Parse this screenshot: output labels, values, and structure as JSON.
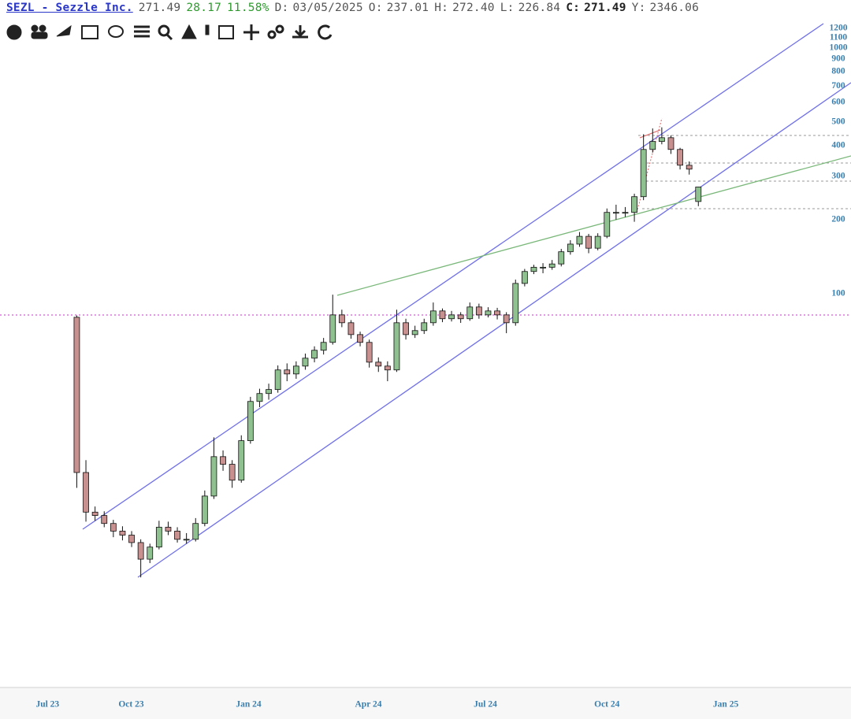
{
  "header": {
    "symbol": "SEZL - Sezzle Inc.",
    "last": "271.49",
    "change": "28.17",
    "change_pct": "11.58%",
    "fields": [
      {
        "label": "D:",
        "value": "03/05/2025"
      },
      {
        "label": "O:",
        "value": "237.01"
      },
      {
        "label": "H:",
        "value": "272.40"
      },
      {
        "label": "L:",
        "value": "226.84"
      },
      {
        "label": "C:",
        "value": "271.49"
      },
      {
        "label": "Y:",
        "value": "2346.06"
      }
    ]
  },
  "chart_data": {
    "type": "candlestick",
    "log_scale": true,
    "ylim": [
      2.55,
      1255
    ],
    "yticks": [
      100,
      200,
      300,
      400,
      500,
      600,
      700,
      800,
      900,
      1000,
      1100,
      1200
    ],
    "xlim": [
      -8.4,
      84.7
    ],
    "xticks": [
      {
        "value": -3.2,
        "label": "Jul 23"
      },
      {
        "value": 5.95,
        "label": "Oct 23"
      },
      {
        "value": 18.8,
        "label": "Jan 24"
      },
      {
        "value": 31.9,
        "label": "Apr 24"
      },
      {
        "value": 44.7,
        "label": "Jul 24"
      },
      {
        "value": 58,
        "label": "Oct 24"
      },
      {
        "value": 71,
        "label": "Jan 25"
      }
    ],
    "up_color": "#8fc08f",
    "down_color": "#c99090",
    "open": [
      80.1,
      18.7,
      12.9,
      12.5,
      11.6,
      10.8,
      10.4,
      9.7,
      8.3,
      9.3,
      11.2,
      10.8,
      10.0,
      10.0,
      11.6,
      15.0,
      21.7,
      20.2,
      17.4,
      25.2,
      36.4,
      39.2,
      40.7,
      48.9,
      47.1,
      50.7,
      54.6,
      58.8,
      63.3,
      81.9,
      76.1,
      68.1,
      63.3,
      52.6,
      50.7,
      48.9,
      76.1,
      68.1,
      70.7,
      76.1,
      85.0,
      79.0,
      81.9,
      79.0,
      88.2,
      81.9,
      85.0,
      81.9,
      76.1,
      110,
      123,
      128,
      128,
      132,
      148,
      159,
      171,
      153,
      171,
      214,
      214,
      214,
      248,
      386,
      416,
      431,
      386,
      333,
      237.01
    ],
    "high": [
      81.5,
      21.0,
      13.6,
      13.0,
      12.0,
      11.3,
      10.8,
      10.0,
      9.6,
      11.9,
      11.8,
      11.2,
      10.6,
      12.2,
      15.8,
      26.0,
      23.0,
      21.0,
      26.5,
      38.0,
      41.0,
      43.0,
      51.0,
      52.0,
      53.0,
      57.0,
      61.0,
      66.0,
      99.0,
      86.0,
      78.0,
      70.0,
      65.0,
      55.0,
      53.0,
      86.0,
      79.0,
      74.0,
      79.0,
      92.0,
      87.0,
      85.0,
      84.0,
      92.0,
      91.0,
      88.0,
      87.5,
      84.0,
      114,
      126,
      131,
      133,
      137,
      152,
      165,
      178,
      175,
      176,
      222,
      230,
      225,
      255,
      445,
      470,
      475,
      440,
      392,
      345,
      272.4
    ],
    "low": [
      16.2,
      11.8,
      11.9,
      11.2,
      10.2,
      9.9,
      9.3,
      7.0,
      8.0,
      9.1,
      10.4,
      9.7,
      9.6,
      9.8,
      11.3,
      14.6,
      19.0,
      16.2,
      17.0,
      24.5,
      34.5,
      37.0,
      39.5,
      44.0,
      45.0,
      49.0,
      52.5,
      56.5,
      62.0,
      73.0,
      65.5,
      61.0,
      50.0,
      48.0,
      44.0,
      48.0,
      65.0,
      66.0,
      68.5,
      74.0,
      76.5,
      77.0,
      76.0,
      77.5,
      79.0,
      80.0,
      78.5,
      69.0,
      74.0,
      107,
      120,
      121,
      125,
      129,
      144,
      155,
      146,
      150,
      168,
      200,
      205,
      196,
      240,
      375,
      405,
      370,
      320,
      305,
      226.84
    ],
    "close": [
      18.7,
      12.9,
      12.5,
      11.6,
      10.8,
      10.4,
      9.7,
      8.3,
      9.3,
      11.2,
      10.8,
      10.0,
      10.0,
      11.6,
      15.0,
      21.7,
      20.2,
      17.4,
      25.2,
      36.4,
      39.2,
      40.7,
      48.9,
      47.1,
      50.7,
      54.6,
      58.8,
      63.3,
      81.9,
      76.1,
      68.1,
      63.3,
      52.6,
      50.7,
      48.9,
      76.1,
      68.1,
      70.7,
      76.1,
      85.0,
      79.0,
      81.9,
      79.0,
      88.2,
      81.9,
      85.0,
      81.9,
      76.1,
      110,
      123,
      128,
      128,
      132,
      148,
      159,
      171,
      153,
      171,
      214,
      214,
      214,
      248,
      386,
      416,
      431,
      386,
      333,
      321,
      271.49
    ]
  }
}
